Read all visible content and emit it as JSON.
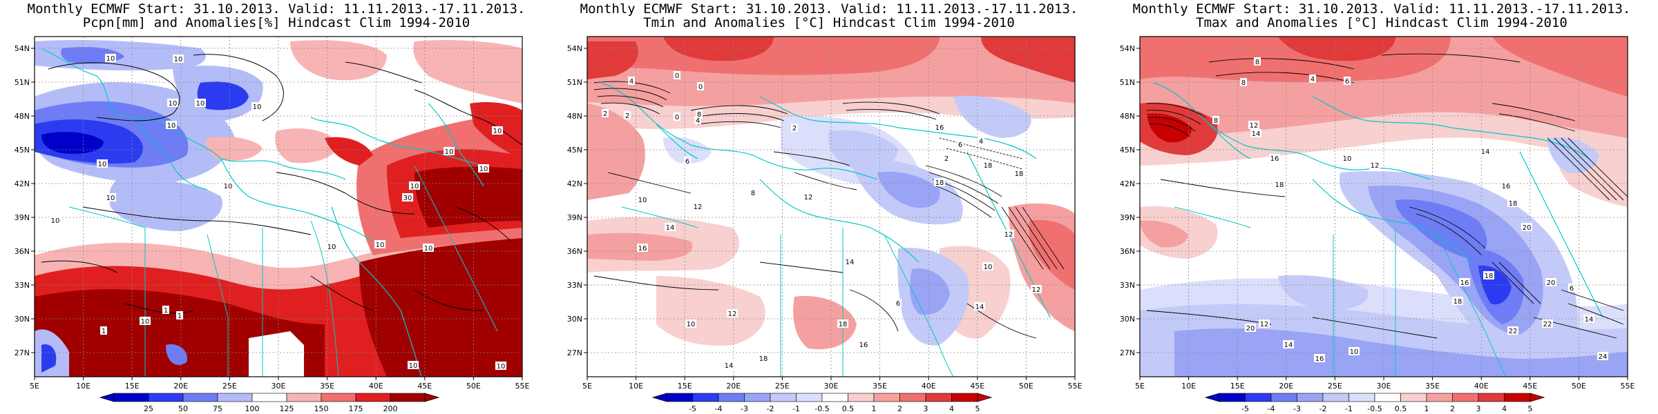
{
  "panels": [
    {
      "id": "pcpn",
      "title1": "Monthly ECMWF Start: 31.10.2013. Valid: 11.11.2013.-17.11.2013.",
      "title2": "Pcpn[mm] and Anomalies[%] Hindcast Clim 1994-2010",
      "lat_labels": [
        "54N",
        "51N",
        "48N",
        "45N",
        "42N",
        "39N",
        "36N",
        "33N",
        "30N",
        "27N"
      ],
      "lon_labels": [
        "5E",
        "10E",
        "15E",
        "20E",
        "25E",
        "30E",
        "35E",
        "40E",
        "45E",
        "50E",
        "55E"
      ],
      "colorbar_labels": [
        "25",
        "50",
        "75",
        "100",
        "125",
        "150",
        "175",
        "200"
      ],
      "contour_labels": [
        "10",
        "10",
        "10",
        "10",
        "10",
        "10",
        "10",
        "10",
        "10",
        "10",
        "10",
        "10",
        "10",
        "10",
        "10",
        "30",
        "1",
        "1",
        "1",
        "10",
        "10",
        "10",
        "10",
        "10"
      ],
      "colors": [
        "#0000c8",
        "#2b3cf0",
        "#6e7df5",
        "#b4bcf8",
        "#ffffff",
        "#f8b4b4",
        "#f07070",
        "#e02020",
        "#a00000"
      ]
    },
    {
      "id": "tmin",
      "title1": "Monthly ECMWF Start: 31.10.2013. Valid: 11.11.2013.-17.11.2013.",
      "title2": "Tmin and Anomalies [°C] Hindcast Clim 1994-2010",
      "lat_labels": [
        "54N",
        "51N",
        "48N",
        "45N",
        "42N",
        "39N",
        "36N",
        "33N",
        "30N",
        "27N"
      ],
      "lon_labels": [
        "5E",
        "10E",
        "15E",
        "20E",
        "25E",
        "30E",
        "35E",
        "40E",
        "45E",
        "50E",
        "55E"
      ],
      "colorbar_labels": [
        "-5",
        "-4",
        "-3",
        "-2",
        "-1",
        "-0.5",
        "0.5",
        "1",
        "2",
        "3",
        "4",
        "5"
      ],
      "contour_labels": [
        "4",
        "2",
        "2",
        "0",
        "0",
        "2",
        "4",
        "6",
        "8",
        "10",
        "12",
        "14",
        "16",
        "18",
        "18",
        "18",
        "12",
        "12",
        "10",
        "14",
        "12",
        "0",
        "8",
        "6",
        "4",
        "2",
        "16",
        "14",
        "12",
        "10",
        "18",
        "6",
        "16",
        "18",
        "14"
      ],
      "colors": [
        "#0000c8",
        "#2b3cf0",
        "#6e7df5",
        "#9aa4f5",
        "#c4caf8",
        "#dcdffb",
        "#ffffff",
        "#f8d0d0",
        "#f5a0a0",
        "#f07070",
        "#e03a3a",
        "#c80000"
      ]
    },
    {
      "id": "tmax",
      "title1": "Monthly ECMWF Start: 31.10.2013. Valid: 11.11.2013.-17.11.2013.",
      "title2": "Tmax and Anomalies [°C] Hindcast Clim 1994-2010",
      "lat_labels": [
        "54N",
        "51N",
        "48N",
        "45N",
        "42N",
        "39N",
        "36N",
        "33N",
        "30N",
        "27N"
      ],
      "lon_labels": [
        "5E",
        "10E",
        "15E",
        "20E",
        "25E",
        "30E",
        "35E",
        "40E",
        "45E",
        "50E",
        "55E"
      ],
      "colorbar_labels": [
        "-5",
        "-4",
        "-3",
        "-2",
        "-1",
        "-0.5",
        "0.5",
        "1",
        "2",
        "3",
        "4",
        "5"
      ],
      "contour_labels": [
        "8",
        "4",
        "6",
        "8",
        "8",
        "12",
        "14",
        "16",
        "18",
        "10",
        "12",
        "14",
        "16",
        "18",
        "20",
        "20",
        "22",
        "22",
        "24",
        "18",
        "16",
        "18",
        "20",
        "12",
        "14",
        "16",
        "10",
        "14",
        "6"
      ],
      "colors": [
        "#0000c8",
        "#2b3cf0",
        "#6e7df5",
        "#9aa4f5",
        "#c4caf8",
        "#dcdffb",
        "#ffffff",
        "#f8d0d0",
        "#f5a0a0",
        "#f07070",
        "#e03a3a",
        "#c80000"
      ]
    }
  ]
}
